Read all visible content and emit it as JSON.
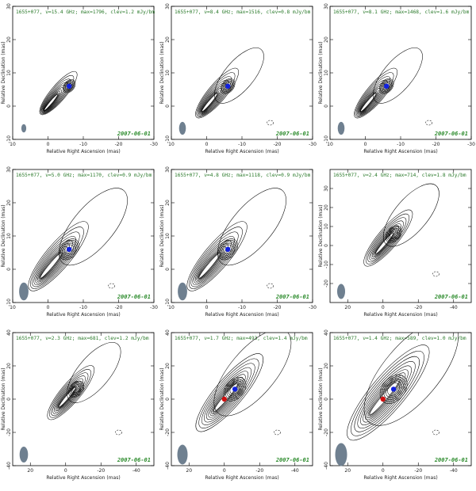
{
  "figure": {
    "xlabel": "Relative Right Ascension (mas)",
    "ylabel": "Relative Declination (mas)",
    "panels": [
      {
        "title": "1655+077, ν=15.4 GHz; max=1796, clev=1.2 mJy/bm",
        "date": "2007-06-01",
        "xlim": [
          10,
          -30
        ],
        "ylim": [
          -10,
          30
        ],
        "xticks": [
          10,
          0,
          -10,
          -20,
          -30
        ],
        "yticks": [
          -10,
          0,
          10,
          20,
          30
        ],
        "scale": 1.0,
        "blue": [
          -6,
          6
        ],
        "red": null,
        "beam": [
          0.8,
          1.4
        ]
      },
      {
        "title": "1655+077, ν=8.4 GHz; max=1516, clev=0.8 mJy/bm",
        "date": "2007-06-01",
        "xlim": [
          10,
          -30
        ],
        "ylim": [
          -10,
          30
        ],
        "xticks": [
          10,
          0,
          -10,
          -20,
          -30
        ],
        "yticks": [
          -10,
          0,
          10,
          20,
          30
        ],
        "scale": 1.15,
        "blue": [
          -6,
          6
        ],
        "red": null,
        "beam": [
          1.4,
          2.8
        ]
      },
      {
        "title": "1655+077, ν=8.1 GHz; max=1468, clev=1.6 mJy/bm",
        "date": "2007-06-01",
        "xlim": [
          10,
          -30
        ],
        "ylim": [
          -10,
          30
        ],
        "xticks": [
          10,
          0,
          -10,
          -20,
          -30
        ],
        "yticks": [
          -10,
          0,
          10,
          20,
          30
        ],
        "scale": 1.15,
        "blue": [
          -6,
          6
        ],
        "red": null,
        "beam": [
          1.4,
          2.8
        ]
      },
      {
        "title": "1655+077, ν=5.0 GHz; max=1170, clev=0.9 mJy/bm",
        "date": "2007-06-01",
        "xlim": [
          10,
          -30
        ],
        "ylim": [
          -10,
          30
        ],
        "xticks": [
          10,
          0,
          -10,
          -20,
          -30
        ],
        "yticks": [
          -10,
          0,
          10,
          20,
          30
        ],
        "scale": 1.6,
        "blue": [
          -6,
          6
        ],
        "red": null,
        "beam": [
          2.2,
          4.4
        ]
      },
      {
        "title": "1655+077, ν=4.8 GHz; max=1118, clev=0.9 mJy/bm",
        "date": "2007-06-01",
        "xlim": [
          10,
          -30
        ],
        "ylim": [
          -10,
          30
        ],
        "xticks": [
          10,
          0,
          -10,
          -20,
          -30
        ],
        "yticks": [
          -10,
          0,
          10,
          20,
          30
        ],
        "scale": 1.6,
        "blue": [
          -6,
          6
        ],
        "red": null,
        "beam": [
          2.2,
          4.4
        ]
      },
      {
        "title": "1655+077, ν=2.4 GHz; max=714, clev=1.8 mJy/bm",
        "date": "2007-06-01",
        "xlim": [
          30,
          -50
        ],
        "ylim": [
          -30,
          40
        ],
        "xticks": [
          20,
          0,
          -20,
          -40
        ],
        "yticks": [
          -20,
          -10,
          0,
          10,
          20,
          30
        ],
        "scale": 2.6,
        "blue": null,
        "red": null,
        "beam": [
          3.5,
          7
        ]
      },
      {
        "title": "1655+077, ν=2.3 GHz; max=681, clev=1.2 mJy/bm",
        "date": "2007-06-01",
        "xlim": [
          30,
          -50
        ],
        "ylim": [
          -40,
          40
        ],
        "xticks": [
          20,
          0,
          -20,
          -40
        ],
        "yticks": [
          -40,
          -20,
          0,
          20,
          40
        ],
        "scale": 2.5,
        "blue": null,
        "red": null,
        "beam": [
          3.8,
          7.5
        ]
      },
      {
        "title": "1655+077, ν=1.7 GHz; max=493, clev=1.4 mJy/bm",
        "date": "2007-06-01",
        "xlim": [
          30,
          -50
        ],
        "ylim": [
          -40,
          40
        ],
        "xticks": [
          20,
          0,
          -20,
          -40
        ],
        "yticks": [
          -40,
          -20,
          0,
          20,
          40
        ],
        "scale": 3.6,
        "blue": [
          -6,
          6
        ],
        "red": [
          0,
          0
        ],
        "beam": [
          5,
          10
        ]
      },
      {
        "title": "1655+077, ν=1.4 GHz; max=589, clev=1.0 mJy/bm",
        "date": "2007-06-01",
        "xlim": [
          30,
          -50
        ],
        "ylim": [
          -40,
          40
        ],
        "xticks": [
          20,
          0,
          -20,
          -40
        ],
        "yticks": [
          -40,
          -20,
          0,
          20,
          40
        ],
        "scale": 4.4,
        "blue": [
          -6,
          6
        ],
        "red": [
          0,
          0
        ],
        "beam": [
          6,
          12
        ]
      }
    ]
  },
  "colors": {
    "blue": "#1020e0",
    "red": "#d01010",
    "beam": "#6f8090",
    "title": "#2a7a2a"
  }
}
